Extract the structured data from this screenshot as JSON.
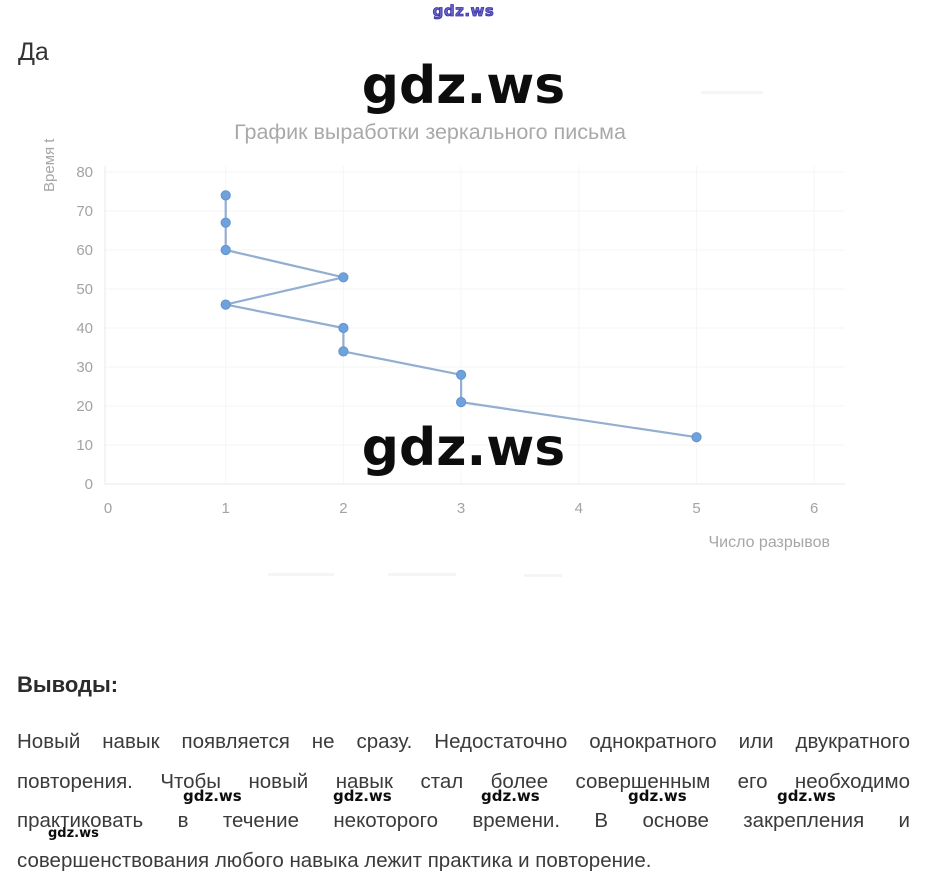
{
  "page": {
    "top_watermark": "gdz.ws",
    "answer_label": "Да",
    "watermark_large": "gdz.ws"
  },
  "chart_data": {
    "type": "line",
    "title": "График выработки зеркального письма",
    "xlabel": "Число разрывов",
    "ylabel": "Время t",
    "points": [
      {
        "x": 1,
        "y": 74
      },
      {
        "x": 1,
        "y": 67
      },
      {
        "x": 1,
        "y": 60
      },
      {
        "x": 2,
        "y": 53
      },
      {
        "x": 1,
        "y": 46
      },
      {
        "x": 2,
        "y": 40
      },
      {
        "x": 2,
        "y": 34
      },
      {
        "x": 3,
        "y": 28
      },
      {
        "x": 3,
        "y": 21
      },
      {
        "x": 5,
        "y": 12
      }
    ],
    "xlim": [
      0,
      6
    ],
    "ylim": [
      0,
      80
    ],
    "xticks": [
      0,
      1,
      2,
      3,
      4,
      5,
      6
    ],
    "yticks": [
      0,
      10,
      20,
      30,
      40,
      50,
      60,
      70,
      80
    ],
    "grid": "faint",
    "legend_position": "none",
    "line_color": "#93aed1",
    "marker_color": "#6fa2dd",
    "marker_edge_color": "#5e94d0",
    "axis_color": "#e9e9e9",
    "label_color": "#a6a6a6",
    "tick_color": "#a3a3a3"
  },
  "conclusions": {
    "heading": "Выводы:",
    "lines": [
      "Новый навык появляется не сразу. Недостаточно однократного или двукратного",
      "повторения. Чтобы новый навык стал более совершенным его необходимо",
      "практиковать в течение некоторого времени. В основе закрепления и",
      "совершенствования любого навыка лежит практика и повторение."
    ]
  },
  "watermarks": {
    "small_label": "gdz.ws"
  }
}
